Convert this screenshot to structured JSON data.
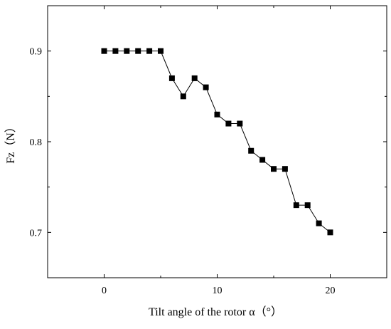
{
  "chart_data": {
    "type": "line",
    "title": "",
    "xlabel": "Tilt angle of the rotor α（°）",
    "ylabel": "Fz（N）",
    "xlim": [
      -5,
      25
    ],
    "ylim": [
      0.65,
      0.95
    ],
    "xticks": [
      0,
      10,
      20
    ],
    "yticks": [
      0.7,
      0.8,
      0.9
    ],
    "xtick_labels": [
      "0",
      "10",
      "20"
    ],
    "ytick_labels": [
      "0.7",
      "0.8",
      "0.9"
    ],
    "grid": false,
    "legend": "none",
    "marker": "square",
    "series": [
      {
        "color": "#000000",
        "x": [
          0,
          1,
          2,
          3,
          4,
          5,
          6,
          7,
          8,
          9,
          10,
          11,
          12,
          13,
          14,
          15,
          16,
          17,
          18,
          19,
          20
        ],
        "y": [
          0.9,
          0.9,
          0.9,
          0.9,
          0.9,
          0.9,
          0.87,
          0.85,
          0.87,
          0.86,
          0.83,
          0.82,
          0.82,
          0.79,
          0.78,
          0.77,
          0.77,
          0.73,
          0.73,
          0.71,
          0.7
        ]
      }
    ]
  }
}
